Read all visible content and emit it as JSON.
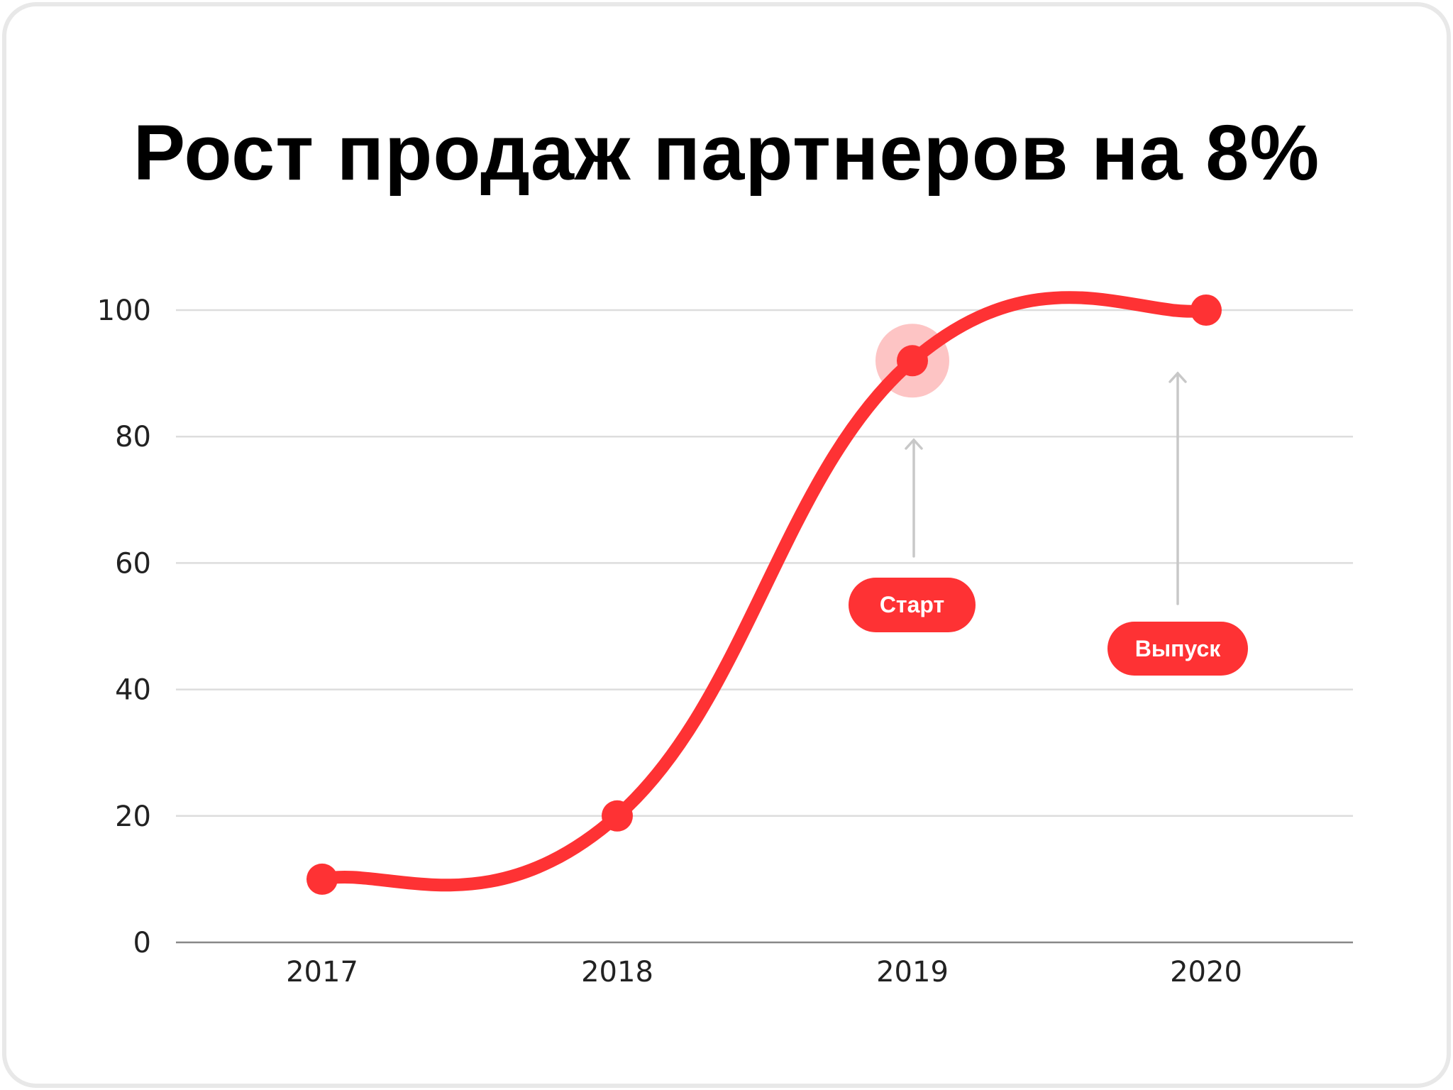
{
  "chart_data": {
    "type": "line",
    "title": "Рост продаж партнеров на 8%",
    "categories": [
      "2017",
      "2018",
      "2019",
      "2020"
    ],
    "values": [
      10,
      20,
      92,
      100
    ],
    "ylim": [
      0,
      100
    ],
    "yticks": [
      "0",
      "20",
      "40",
      "60",
      "80",
      "100"
    ],
    "grid": true,
    "smooth": true,
    "highlighted_point": "2019",
    "annotations": [
      {
        "label": "Старт",
        "target": "2019"
      },
      {
        "label": "Выпуск",
        "target": "2020"
      }
    ],
    "colors": {
      "line": "#fe3234",
      "highlight": "#fdc4c4",
      "grid": "#dddddd",
      "arrow": "#c8c8c8"
    }
  }
}
